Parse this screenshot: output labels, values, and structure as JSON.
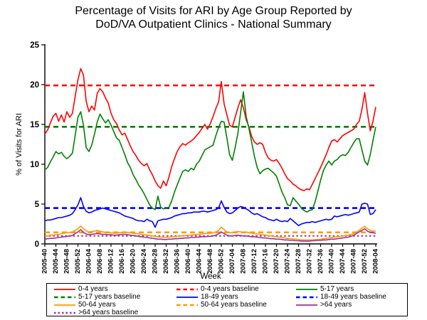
{
  "title": {
    "line1": "Percentage of Visits for ARI by Age Group Reported by",
    "line2": "DoD/VA Outpatient Clinics - National Summary"
  },
  "chart_data": {
    "type": "line",
    "title": "Percentage of Visits for ARI by Age Group Reported by DoD/VA Outpatient Clinics - National Summary",
    "xlabel": "Week",
    "ylabel": "% of Visits for ARI",
    "ylim": [
      0,
      25
    ],
    "yticks": [
      0,
      5,
      10,
      15,
      20,
      25
    ],
    "grid": false,
    "legend_position": "bottom-box",
    "x_tick_interval_weeks": 4,
    "x_tick_labels": [
      "2005-40",
      "2005-44",
      "2005-48",
      "2005-52",
      "2006-04",
      "2006-08",
      "2006-12",
      "2006-16",
      "2006-20",
      "2006-24",
      "2006-28",
      "2006-32",
      "2006-36",
      "2006-40",
      "2006-44",
      "2006-48",
      "2006-52",
      "2007-04",
      "2007-08",
      "2007-12",
      "2007-16",
      "2007-20",
      "2007-24",
      "2007-28",
      "2007-32",
      "2007-36",
      "2007-40",
      "2007-44",
      "2007-48",
      "2007-52",
      "2008-04"
    ],
    "x_unit": "weekly values from 2005-40 through 2008-04",
    "series": [
      {
        "name": "0-4 years",
        "color": "#FF0000",
        "style": "solid",
        "values": [
          13.8,
          14.3,
          15.2,
          16.0,
          16.4,
          15.4,
          16.2,
          15.3,
          16.6,
          15.9,
          16.4,
          18.5,
          20.6,
          22.0,
          21.2,
          17.9,
          16.6,
          17.3,
          16.8,
          18.9,
          19.5,
          19.1,
          18.3,
          17.7,
          16.4,
          15.6,
          15.1,
          14.3,
          13.7,
          13.9,
          13.1,
          12.3,
          11.6,
          11.1,
          10.5,
          10.1,
          9.8,
          10.1,
          9.3,
          8.7,
          7.9,
          7.3,
          7.0,
          7.9,
          7.3,
          8.4,
          9.7,
          10.7,
          11.6,
          12.2,
          12.6,
          12.4,
          12.7,
          12.9,
          13.2,
          13.6,
          14.0,
          14.5,
          15.0,
          14.4,
          15.1,
          16.0,
          17.0,
          17.8,
          20.4,
          17.6,
          16.2,
          14.9,
          14.7,
          15.9,
          17.1,
          18.1,
          17.1,
          15.6,
          14.7,
          13.5,
          12.8,
          12.5,
          12.7,
          12.5,
          11.5,
          10.8,
          10.5,
          10.4,
          10.6,
          10.1,
          9.5,
          8.8,
          8.2,
          7.9,
          7.5,
          7.3,
          7.0,
          6.8,
          6.7,
          6.9,
          6.8,
          7.5,
          8.2,
          8.9,
          9.6,
          10.4,
          11.2,
          12.1,
          12.9,
          13.1,
          12.8,
          13.2,
          13.6,
          13.8,
          14.0,
          14.2,
          14.4,
          15.0,
          15.4,
          16.9,
          19.0,
          16.4,
          14.2,
          15.4,
          17.2
        ]
      },
      {
        "name": "5-17 years",
        "color": "#008000",
        "style": "solid",
        "values": [
          9.3,
          9.6,
          10.3,
          10.9,
          11.6,
          11.3,
          11.5,
          11.0,
          10.7,
          11.0,
          11.4,
          13.6,
          15.9,
          16.6,
          14.9,
          12.1,
          11.6,
          12.4,
          13.8,
          15.3,
          16.3,
          15.7,
          15.2,
          15.6,
          14.9,
          14.1,
          13.3,
          13.0,
          12.1,
          11.2,
          10.2,
          9.6,
          8.7,
          8.1,
          7.4,
          6.9,
          6.3,
          5.6,
          4.9,
          4.5,
          4.3,
          6.0,
          4.6,
          4.4,
          4.5,
          4.6,
          5.4,
          6.5,
          7.4,
          8.3,
          9.1,
          9.3,
          9.1,
          9.5,
          9.3,
          10.0,
          10.4,
          11.1,
          11.8,
          12.0,
          12.2,
          12.4,
          13.6,
          14.6,
          15.4,
          15.3,
          13.3,
          11.2,
          10.5,
          12.1,
          13.9,
          16.5,
          19.1,
          16.0,
          14.5,
          12.8,
          11.0,
          9.6,
          8.8,
          9.2,
          9.4,
          9.5,
          9.2,
          8.9,
          8.5,
          7.5,
          6.5,
          5.8,
          4.9,
          4.8,
          5.8,
          5.4,
          5.0,
          4.5,
          4.2,
          4.0,
          4.2,
          4.3,
          5.3,
          6.6,
          8.0,
          9.2,
          9.9,
          10.4,
          9.9,
          10.4,
          10.6,
          11.0,
          11.2,
          11.1,
          11.5,
          12.1,
          12.7,
          13.2,
          13.2,
          11.8,
          10.4,
          9.9,
          11.2,
          13.0,
          14.7
        ]
      },
      {
        "name": "18-49 years",
        "color": "#0000FF",
        "style": "solid",
        "values": [
          2.9,
          3.0,
          3.0,
          3.1,
          3.2,
          3.3,
          3.3,
          3.4,
          3.5,
          3.6,
          3.8,
          4.3,
          4.9,
          5.8,
          4.7,
          4.1,
          3.9,
          4.0,
          4.2,
          4.3,
          4.4,
          4.5,
          4.4,
          4.3,
          4.2,
          4.1,
          4.0,
          3.9,
          3.7,
          3.5,
          3.4,
          3.3,
          3.2,
          3.0,
          2.9,
          2.9,
          2.8,
          3.1,
          2.9,
          2.8,
          2.1,
          2.9,
          3.0,
          3.1,
          3.1,
          3.2,
          3.3,
          3.5,
          3.6,
          3.7,
          3.8,
          3.8,
          3.9,
          3.9,
          4.0,
          4.0,
          4.0,
          4.1,
          4.1,
          4.0,
          4.1,
          4.2,
          4.3,
          4.5,
          5.4,
          4.6,
          4.0,
          3.8,
          3.9,
          4.2,
          4.5,
          4.7,
          4.6,
          4.4,
          4.2,
          3.9,
          3.7,
          3.8,
          3.6,
          3.4,
          3.3,
          3.1,
          3.0,
          2.9,
          3.1,
          2.9,
          2.8,
          2.9,
          2.8,
          3.2,
          2.9,
          2.6,
          2.3,
          2.5,
          2.6,
          2.7,
          2.7,
          2.8,
          2.7,
          2.8,
          2.9,
          3.0,
          3.1,
          3.0,
          3.1,
          3.5,
          3.4,
          3.5,
          3.6,
          3.7,
          3.6,
          3.7,
          3.8,
          3.9,
          4.0,
          5.0,
          5.1,
          5.0,
          3.7,
          3.8,
          4.3
        ]
      },
      {
        "name": "50-64 years",
        "color": "#FF9900",
        "style": "solid",
        "values": [
          1.0,
          1.0,
          1.1,
          1.1,
          1.15,
          1.2,
          1.3,
          1.35,
          1.4,
          1.45,
          1.5,
          1.7,
          1.9,
          2.25,
          1.9,
          1.65,
          1.5,
          1.55,
          1.6,
          1.7,
          1.6,
          1.5,
          1.45,
          1.4,
          1.4,
          1.35,
          1.35,
          1.4,
          1.45,
          1.5,
          1.45,
          1.4,
          1.35,
          1.3,
          1.25,
          1.2,
          1.15,
          1.1,
          1.05,
          1.0,
          0.95,
          0.9,
          0.85,
          0.8,
          0.8,
          0.85,
          0.9,
          0.9,
          0.95,
          1.0,
          1.0,
          1.05,
          1.1,
          1.1,
          1.15,
          1.2,
          1.2,
          1.25,
          1.3,
          1.3,
          1.35,
          1.4,
          1.5,
          1.7,
          2.1,
          1.8,
          1.5,
          1.4,
          1.45,
          1.5,
          1.55,
          1.5,
          1.45,
          1.5,
          1.4,
          1.35,
          1.3,
          1.25,
          1.2,
          1.15,
          1.1,
          1.05,
          1.0,
          0.95,
          0.9,
          0.85,
          0.8,
          0.75,
          0.7,
          0.65,
          0.6,
          0.6,
          0.55,
          0.5,
          0.5,
          0.5,
          0.5,
          0.5,
          0.55,
          0.55,
          0.6,
          0.65,
          0.7,
          0.75,
          0.8,
          0.85,
          0.9,
          0.95,
          1.0,
          1.05,
          1.1,
          1.2,
          1.3,
          1.5,
          1.7,
          2.0,
          2.2,
          1.9,
          1.7,
          1.6,
          1.6
        ]
      },
      {
        "name": ">64 years",
        "color": "#993399",
        "style": "solid",
        "values": [
          0.6,
          0.65,
          0.7,
          0.7,
          0.75,
          0.8,
          0.85,
          0.9,
          0.95,
          1.0,
          1.05,
          1.3,
          1.5,
          1.8,
          1.45,
          1.25,
          1.15,
          1.2,
          1.25,
          1.3,
          1.25,
          1.2,
          1.2,
          1.15,
          1.15,
          1.1,
          1.1,
          1.15,
          1.2,
          1.2,
          1.15,
          1.1,
          1.05,
          1.0,
          0.95,
          0.9,
          0.85,
          0.8,
          0.75,
          0.7,
          0.65,
          0.6,
          0.6,
          0.55,
          0.55,
          0.6,
          0.6,
          0.65,
          0.65,
          0.7,
          0.7,
          0.75,
          0.75,
          0.8,
          0.8,
          0.85,
          0.85,
          0.9,
          0.9,
          0.95,
          0.95,
          1.0,
          1.1,
          1.25,
          1.5,
          1.3,
          1.1,
          1.0,
          1.0,
          1.05,
          1.1,
          1.05,
          1.0,
          1.0,
          0.95,
          0.9,
          0.9,
          0.85,
          0.8,
          0.75,
          0.75,
          0.7,
          0.65,
          0.65,
          0.6,
          0.6,
          0.55,
          0.5,
          0.5,
          0.45,
          0.45,
          0.4,
          0.4,
          0.35,
          0.35,
          0.35,
          0.35,
          0.4,
          0.4,
          0.45,
          0.45,
          0.5,
          0.5,
          0.55,
          0.6,
          0.6,
          0.65,
          0.7,
          0.75,
          0.8,
          0.85,
          0.95,
          1.1,
          1.3,
          1.5,
          1.7,
          1.9,
          1.6,
          1.45,
          1.4,
          1.35
        ]
      }
    ],
    "baselines": [
      {
        "name": "0-4 years baseline",
        "color": "#FF0000",
        "value": 19.9,
        "dash": "long"
      },
      {
        "name": "5-17 years baseline",
        "color": "#008000",
        "value": 14.7,
        "dash": "long"
      },
      {
        "name": "18-49 years baseline",
        "color": "#0000FF",
        "value": 4.5,
        "dash": "long"
      },
      {
        "name": "50-64 years baseline",
        "color": "#FF9900",
        "value": 1.45,
        "dash": "long"
      },
      {
        "name": ">64 years baseline",
        "color": "#993399",
        "value": 1.0,
        "dash": "dot"
      }
    ],
    "legend": [
      {
        "label": "0-4 years",
        "color": "#FF0000",
        "style": "solid"
      },
      {
        "label": "0-4 years baseline",
        "color": "#FF0000",
        "style": "dashed"
      },
      {
        "label": "5-17 years",
        "color": "#008000",
        "style": "solid"
      },
      {
        "label": "5-17 years baseline",
        "color": "#008000",
        "style": "dashed"
      },
      {
        "label": "18-49 years",
        "color": "#0000FF",
        "style": "solid"
      },
      {
        "label": "18-49 years baseline",
        "color": "#0000FF",
        "style": "dashed"
      },
      {
        "label": "50-64 years",
        "color": "#FF9900",
        "style": "solid"
      },
      {
        "label": "50-64 years baseline",
        "color": "#FF9900",
        "style": "dashed"
      },
      {
        "label": ">64 years",
        "color": "#993399",
        "style": "solid"
      },
      {
        "label": ">64 years baseline",
        "color": "#993399",
        "style": "dotted"
      }
    ],
    "axis_color": "#000000"
  }
}
